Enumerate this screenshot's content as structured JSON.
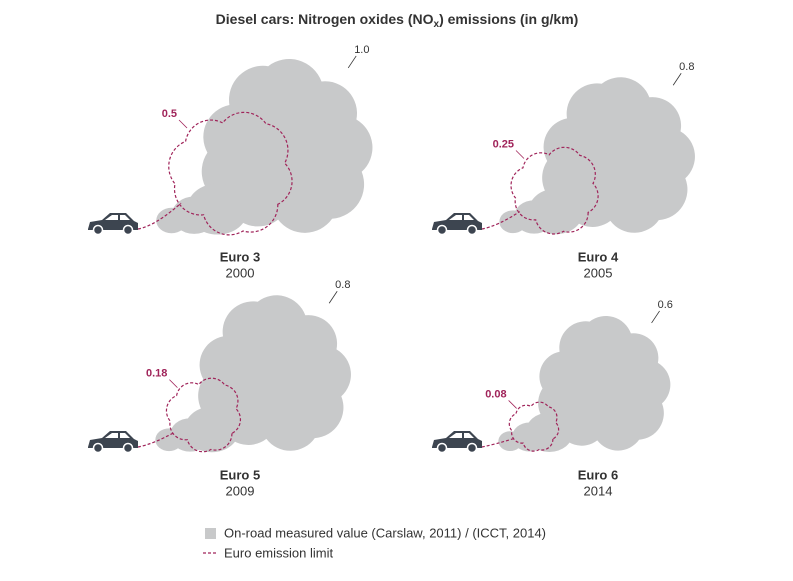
{
  "chart_data": {
    "type": "cloud",
    "title": [
      "Diesel cars: Nitrogen oxides (NO",
      "x",
      ") emissions (in g/km)"
    ],
    "categories": [
      "Euro 3",
      "Euro 4",
      "Euro 5",
      "Euro 6"
    ],
    "years": [
      2000,
      2005,
      2009,
      2014
    ],
    "series": [
      {
        "name": "On-road measured value (Carslaw, 2011) / (ICCT, 2014)",
        "color": "#c8c9ca",
        "values": [
          1,
          0.8,
          0.8,
          0.6
        ],
        "value_labels": [
          "1.0",
          "0.8",
          "0.8",
          "0.6"
        ]
      },
      {
        "name": "Euro emission limit",
        "color": "#a0245a",
        "values": [
          0.5,
          0.25,
          0.18,
          0.08
        ]
      }
    ]
  }
}
